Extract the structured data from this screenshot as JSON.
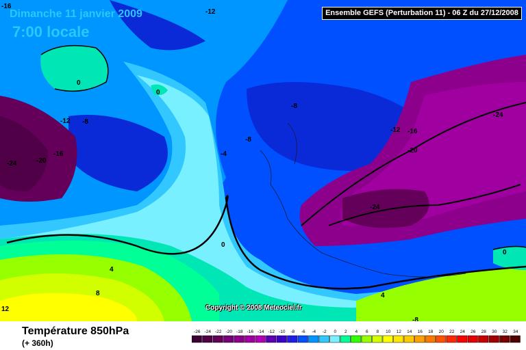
{
  "header": {
    "date": "Dimanche 11 janvier 2009",
    "local_time": "7:00 locale",
    "run": "Ensemble GEFS (Perturbation 11)  -  06 Z du 27/12/2008"
  },
  "map": {
    "copyright": "Copyright © 2008 Meteociel.fr",
    "isotherm_labels": [
      "-16",
      "-12",
      "0",
      "0",
      "-12",
      "-8",
      "-8",
      "-24",
      "-20",
      "-16",
      "-4",
      "-8",
      "-12",
      "-16",
      "-20",
      "-24",
      "-24",
      "0",
      "4",
      "8",
      "12",
      "4",
      "-8",
      "0"
    ]
  },
  "footer": {
    "variable": "Température 850hPa",
    "lead_time": "(+ 360h)"
  },
  "legend": {
    "values": [
      "-26",
      "-24",
      "-22",
      "-20",
      "-18",
      "-16",
      "-14",
      "-12",
      "-10",
      "-8",
      "-6",
      "-4",
      "-2",
      "0",
      "2",
      "4",
      "6",
      "8",
      "10",
      "12",
      "14",
      "16",
      "18",
      "20",
      "22",
      "24",
      "26",
      "28",
      "30",
      "32",
      "34"
    ],
    "colors": [
      "#3c0032",
      "#500046",
      "#64005a",
      "#780078",
      "#8c008c",
      "#a000a0",
      "#b400b4",
      "#5a00b4",
      "#3c00c8",
      "#1e1ee6",
      "#0050ff",
      "#0096ff",
      "#32c8ff",
      "#78f0ff",
      "#00ff96",
      "#32ff00",
      "#96ff00",
      "#d2ff00",
      "#ffff00",
      "#ffe600",
      "#ffc800",
      "#ffa000",
      "#ff7800",
      "#ff5000",
      "#ff2800",
      "#ff0000",
      "#e60000",
      "#c80000",
      "#a00000",
      "#780000",
      "#500000"
    ]
  }
}
